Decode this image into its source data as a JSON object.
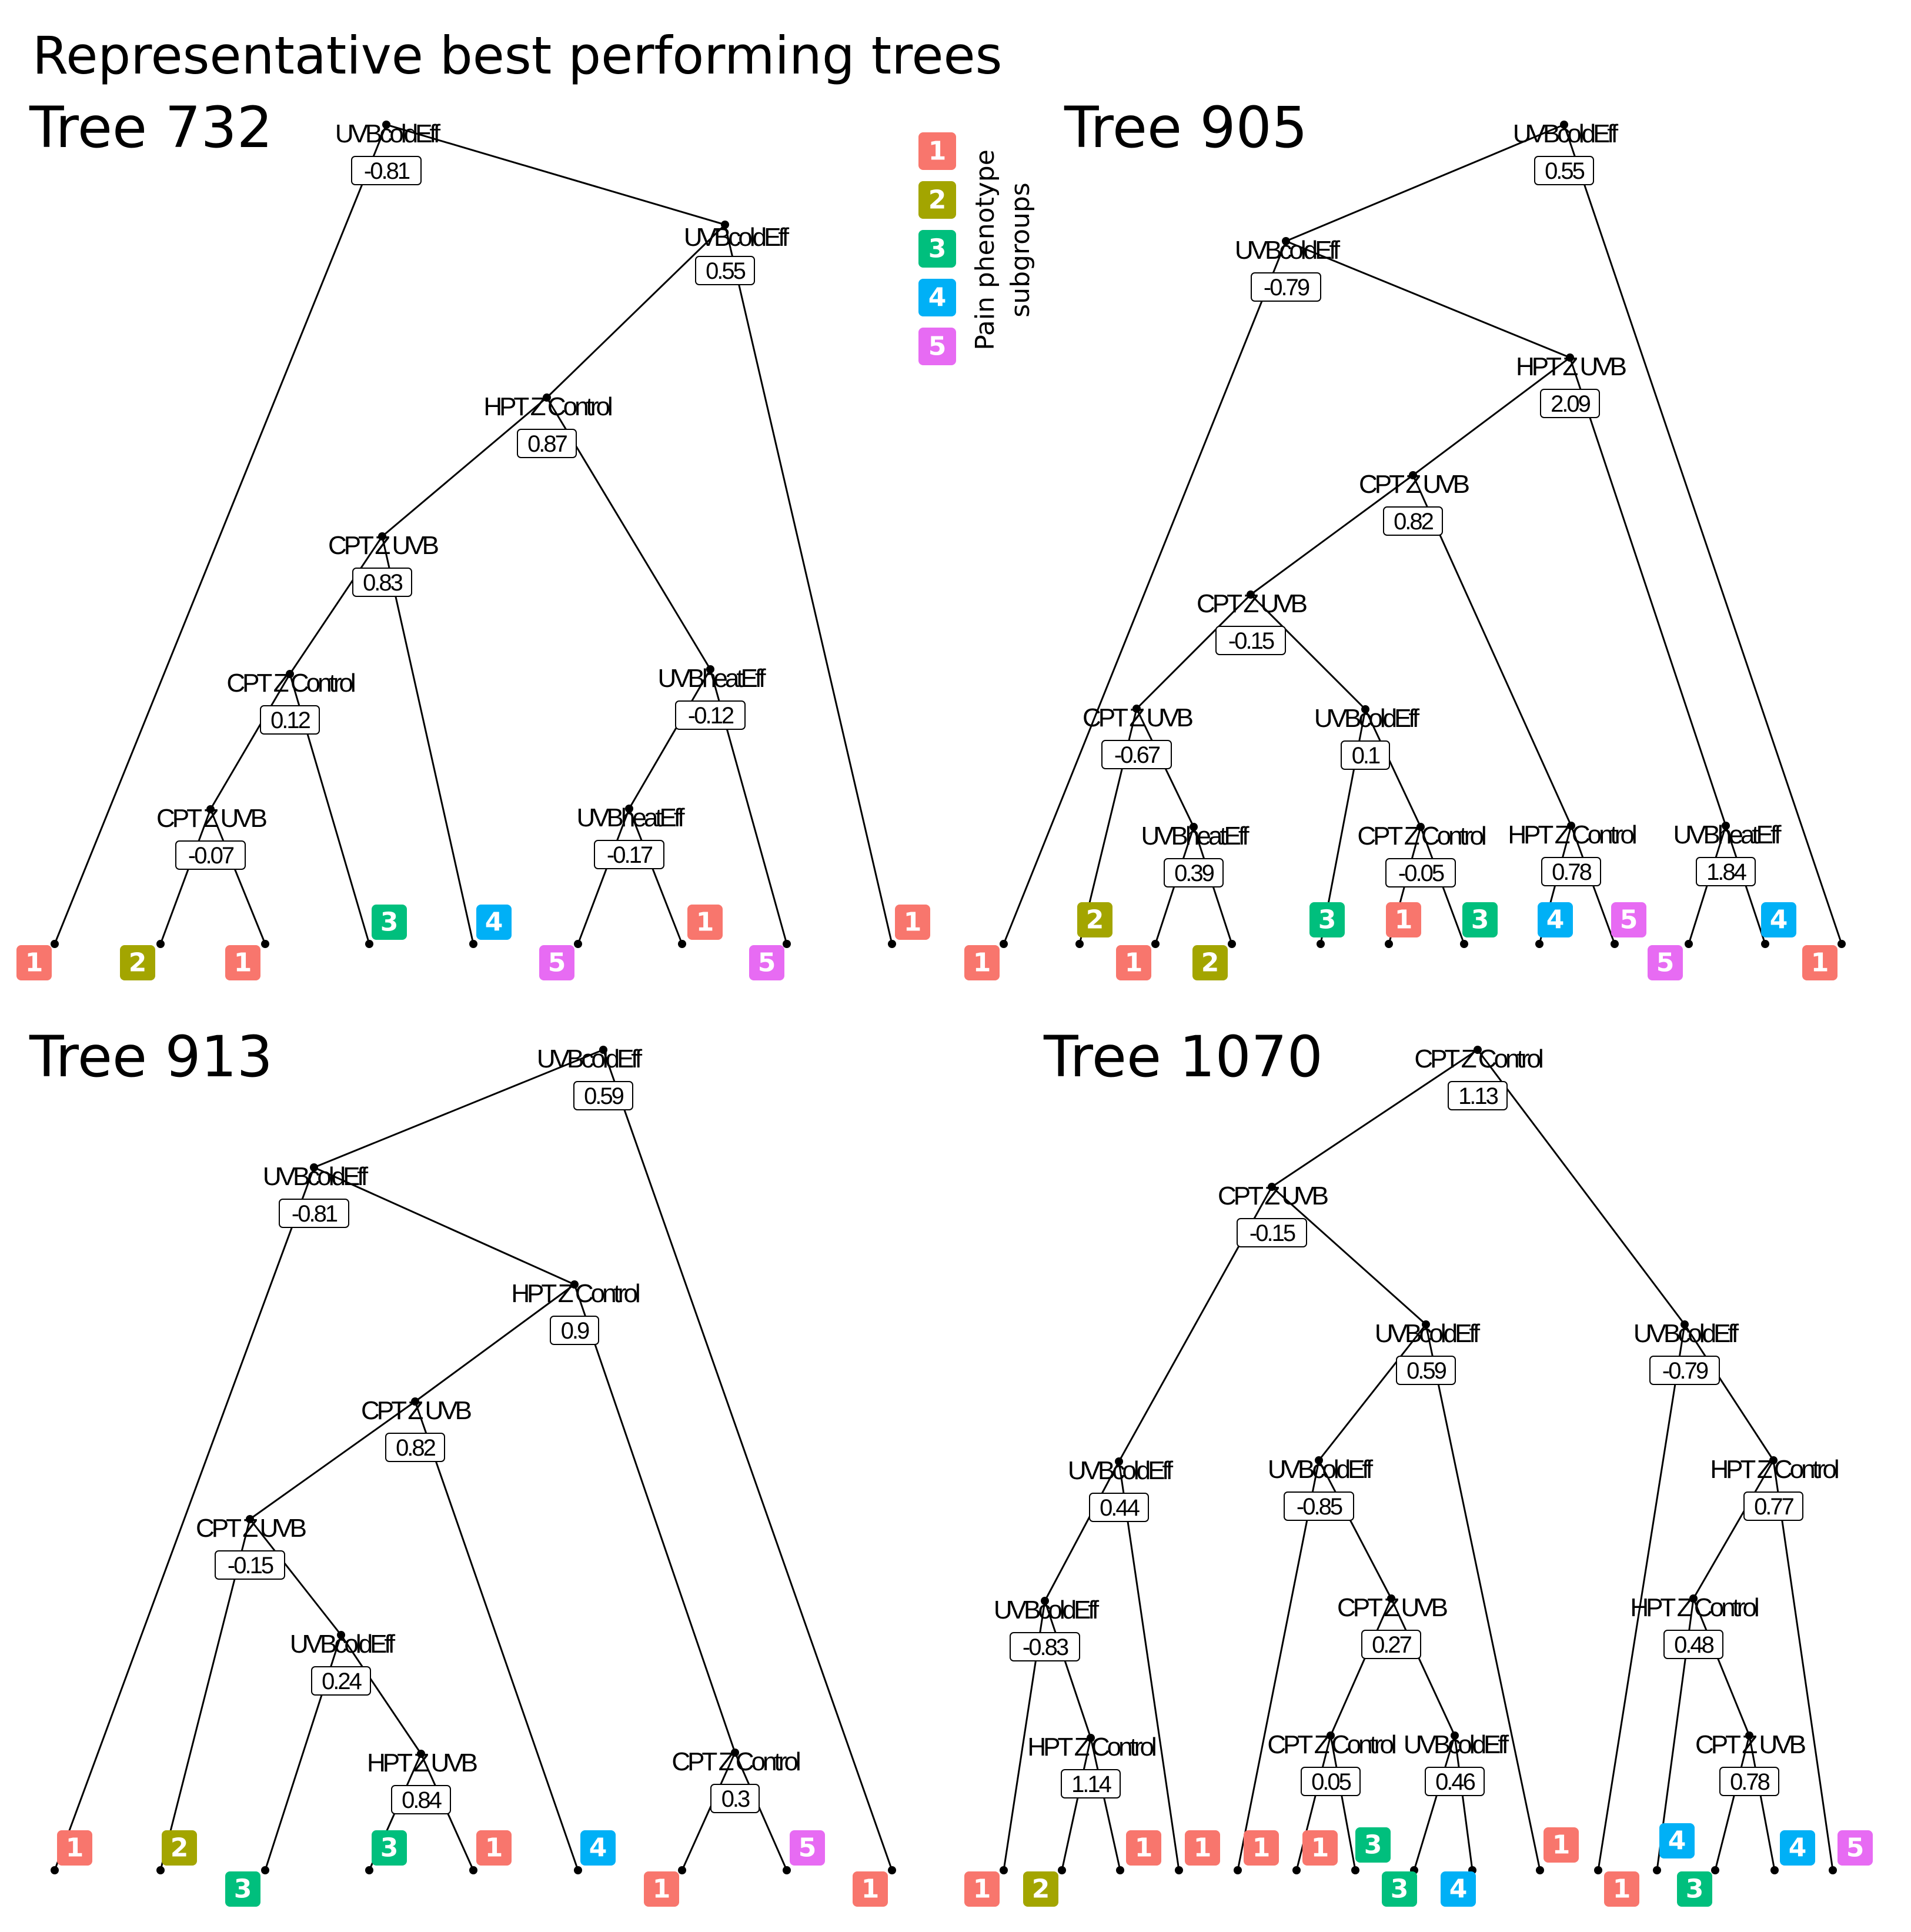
{
  "title": "Representative best performing trees",
  "legend": {
    "title_line1": "Pain phenotype",
    "title_line2": "subgroups",
    "items": [
      {
        "label": "1",
        "color": "#F8766D"
      },
      {
        "label": "2",
        "color": "#A3A500"
      },
      {
        "label": "3",
        "color": "#00BF7D"
      },
      {
        "label": "4",
        "color": "#00B0F6"
      },
      {
        "label": "5",
        "color": "#E76BF3"
      }
    ]
  },
  "trees": [
    {
      "title": "Tree 732",
      "nodes": [
        {
          "id": "r",
          "label": "UVBcoldEff",
          "value": "-0.81"
        },
        {
          "id": "a",
          "label": "UVBcoldEff",
          "value": "0.55"
        },
        {
          "id": "b",
          "label": "HPT Z Control",
          "value": "0.87"
        },
        {
          "id": "c",
          "label": "CPT Z UVB",
          "value": "0.83"
        },
        {
          "id": "d",
          "label": "CPT Z Control",
          "value": "0.12"
        },
        {
          "id": "e",
          "label": "CPT Z UVB",
          "value": "-0.07"
        },
        {
          "id": "f",
          "label": "UVBheatEff",
          "value": "-0.12"
        },
        {
          "id": "g",
          "label": "UVBheatEff",
          "value": "-0.17"
        }
      ],
      "leaves": [
        "1",
        "2",
        "1",
        "3",
        "4",
        "5",
        "1",
        "5",
        "1"
      ]
    },
    {
      "title": "Tree 905",
      "nodes": [
        {
          "id": "r",
          "label": "UVBcoldEff",
          "value": "0.55"
        },
        {
          "id": "a",
          "label": "UVBcoldEff",
          "value": "-0.79"
        },
        {
          "id": "b",
          "label": "HPT Z UVB",
          "value": "2.09"
        },
        {
          "id": "c",
          "label": "CPT Z UVB",
          "value": "0.82"
        },
        {
          "id": "d",
          "label": "CPT Z UVB",
          "value": "-0.15"
        },
        {
          "id": "e",
          "label": "CPT Z UVB",
          "value": "-0.67"
        },
        {
          "id": "f",
          "label": "UVBheatEff",
          "value": "0.39"
        },
        {
          "id": "g",
          "label": "UVBcoldEff",
          "value": "0.1"
        },
        {
          "id": "h",
          "label": "CPT Z Control",
          "value": "-0.05"
        },
        {
          "id": "i",
          "label": "HPT Z Control",
          "value": "0.78"
        },
        {
          "id": "j",
          "label": "UVBheatEff",
          "value": "1.84"
        }
      ],
      "leaves": [
        "1",
        "2",
        "1",
        "2",
        "3",
        "1",
        "3",
        "4",
        "5",
        "5",
        "4",
        "1"
      ]
    },
    {
      "title": "Tree 913",
      "nodes": [
        {
          "id": "r",
          "label": "UVBcoldEff",
          "value": "0.59"
        },
        {
          "id": "a",
          "label": "UVBcoldEff",
          "value": "-0.81"
        },
        {
          "id": "b",
          "label": "HPT Z Control",
          "value": "0.9"
        },
        {
          "id": "c",
          "label": "CPT Z UVB",
          "value": "0.82"
        },
        {
          "id": "d",
          "label": "CPT Z UVB",
          "value": "-0.15"
        },
        {
          "id": "e",
          "label": "UVBcoldEff",
          "value": "0.24"
        },
        {
          "id": "f",
          "label": "HPT Z UVB",
          "value": "0.84"
        },
        {
          "id": "g",
          "label": "CPT Z Control",
          "value": "0.3"
        }
      ],
      "leaves": [
        "1",
        "2",
        "3",
        "3",
        "1",
        "4",
        "1",
        "5",
        "1"
      ]
    },
    {
      "title": "Tree 1070",
      "nodes": [
        {
          "id": "r",
          "label": "CPT Z Control",
          "value": "1.13"
        },
        {
          "id": "a",
          "label": "CPT Z UVB",
          "value": "-0.15"
        },
        {
          "id": "b",
          "label": "UVBcoldEff",
          "value": "0.44"
        },
        {
          "id": "c",
          "label": "UVBcoldEff",
          "value": "-0.83"
        },
        {
          "id": "d",
          "label": "HPT Z Control",
          "value": "1.14"
        },
        {
          "id": "e",
          "label": "UVBcoldEff",
          "value": "0.59"
        },
        {
          "id": "f",
          "label": "UVBcoldEff",
          "value": "-0.85"
        },
        {
          "id": "g",
          "label": "CPT Z UVB",
          "value": "0.27"
        },
        {
          "id": "h",
          "label": "CPT Z Control",
          "value": "0.05"
        },
        {
          "id": "i",
          "label": "UVBcoldEff",
          "value": "0.46"
        },
        {
          "id": "j",
          "label": "UVBcoldEff",
          "value": "-0.79"
        },
        {
          "id": "k",
          "label": "HPT Z Control",
          "value": "0.77"
        },
        {
          "id": "l",
          "label": "HPT Z Control",
          "value": "0.48"
        },
        {
          "id": "m",
          "label": "CPT Z UVB",
          "value": "0.78"
        }
      ],
      "leaves": [
        "1",
        "2",
        "1",
        "1",
        "1",
        "1",
        "3",
        "3",
        "4",
        "1",
        "1",
        "4",
        "3",
        "4",
        "5"
      ]
    }
  ]
}
